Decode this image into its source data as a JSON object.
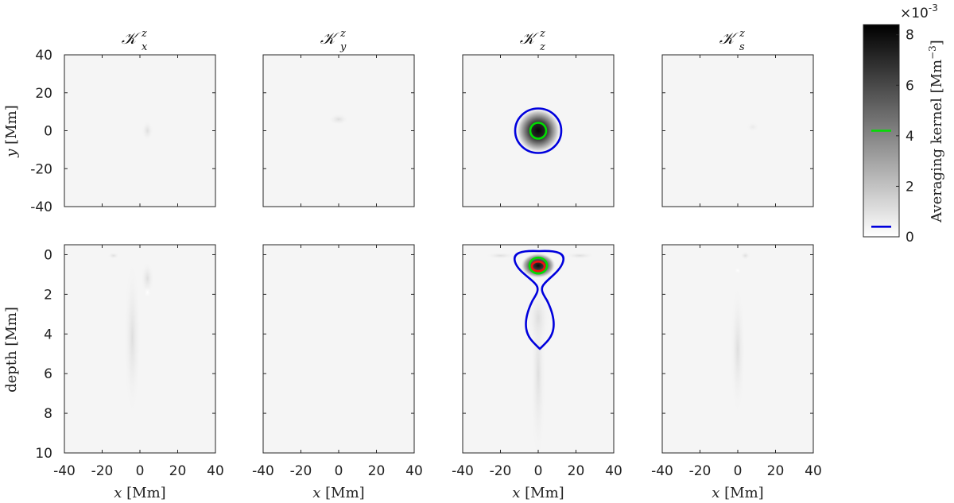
{
  "chart_data": {
    "type": "heatmap",
    "panels": [
      {
        "title": "𝒦",
        "superscript": "z",
        "subscript": "x"
      },
      {
        "title": "𝒦",
        "superscript": "z",
        "subscript": "y"
      },
      {
        "title": "𝒦",
        "superscript": "z",
        "subscript": "z"
      },
      {
        "title": "𝒦",
        "superscript": "z",
        "subscript": "s"
      }
    ],
    "top_row": {
      "ylabel_var": "y",
      "ylabel_unit": " [Mm]",
      "ylim": [
        -40,
        40
      ],
      "yticks": [
        "40",
        "20",
        "0",
        "-20",
        "-40"
      ],
      "ytick_values": [
        40,
        20,
        0,
        -20,
        -40
      ]
    },
    "bottom_row": {
      "ylabel": "depth [Mm]",
      "ylim": [
        10,
        -0.5
      ],
      "yticks": [
        "0",
        "2",
        "4",
        "6",
        "8",
        "10"
      ],
      "ytick_values": [
        0,
        2,
        4,
        6,
        8,
        10
      ]
    },
    "x_axis": {
      "xlabel_var": "x",
      "xlabel_unit": " [Mm]",
      "xlim": [
        -40,
        40
      ],
      "xticks": [
        "-40",
        "-20",
        "0",
        "20",
        "40"
      ],
      "xtick_values": [
        -40,
        -20,
        0,
        20,
        40
      ]
    },
    "colorbar": {
      "label": "Averaging kernel [Mm",
      "label_exp": "−3",
      "label_close": "]",
      "scale_prefix": "×10",
      "scale_exp": "-3",
      "ticks": [
        "0",
        "2",
        "4",
        "6",
        "8"
      ],
      "tick_values": [
        0,
        2,
        4,
        6,
        8
      ],
      "range": [
        0,
        8.4
      ],
      "colormap": [
        "#ffffff",
        "#000000"
      ],
      "contour_markers": [
        {
          "value": 4.2,
          "color": "#00dd00"
        },
        {
          "value": 0.4,
          "color": "#0000dd"
        }
      ]
    },
    "contour_colors": {
      "blue": "#0000dd",
      "green": "#00dd00",
      "red": "#ee1111"
    },
    "panel_background": "#f5f5f5"
  }
}
